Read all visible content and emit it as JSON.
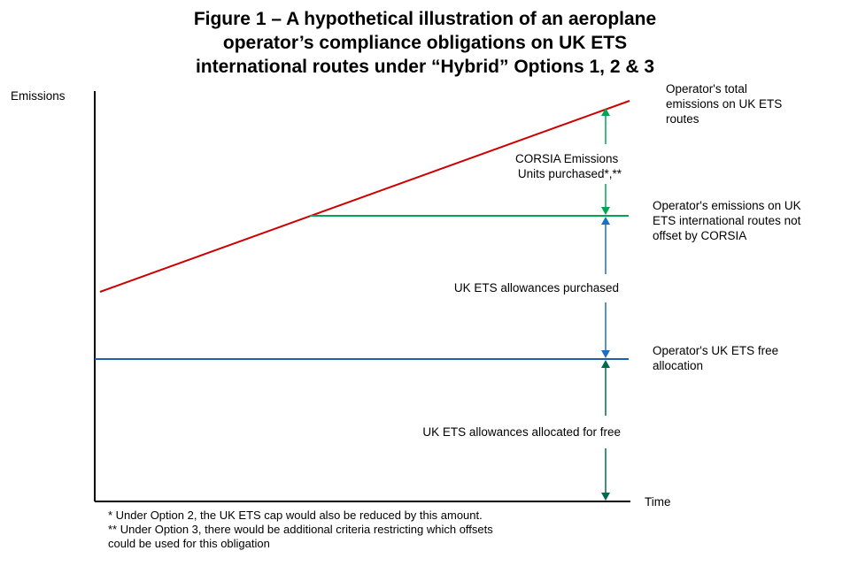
{
  "title_lines": [
    "Figure 1 – A hypothetical illustration of an aeroplane",
    "operator’s compliance obligations on UK ETS",
    "international routes under “Hybrid” Options 1, 2 & 3"
  ],
  "axes": {
    "y_label": "Emissions",
    "x_label": "Time"
  },
  "lines": {
    "total_emissions": {
      "color": "#cc0000"
    },
    "not_offset": {
      "color": "#00a651"
    },
    "free_allocation": {
      "color": "#1f5fa8"
    }
  },
  "arrows": {
    "corsia": {
      "color": "#00a651"
    },
    "ukets_purchased": {
      "color": "#1f6fbf"
    },
    "free": {
      "color": "#006b4e"
    }
  },
  "annotations": {
    "total": [
      "Operator's total",
      "emissions on UK ETS",
      "routes"
    ],
    "not_offset": [
      "Operator's emissions on UK",
      "ETS international routes not",
      "offset by CORSIA"
    ],
    "free_allocation": [
      "Operator's UK ETS free",
      "allocation"
    ],
    "corsia_units": [
      "CORSIA Emissions",
      "Units purchased*,**"
    ],
    "ukets_purchased": [
      "UK ETS allowances purchased"
    ],
    "ukets_free": [
      "UK ETS allowances allocated for free"
    ]
  },
  "footnotes": [
    "* Under Option 2, the UK ETS cap would also be reduced by this amount.",
    "** Under Option 3, there would be additional criteria restricting which offsets",
    "could be used for this obligation"
  ]
}
